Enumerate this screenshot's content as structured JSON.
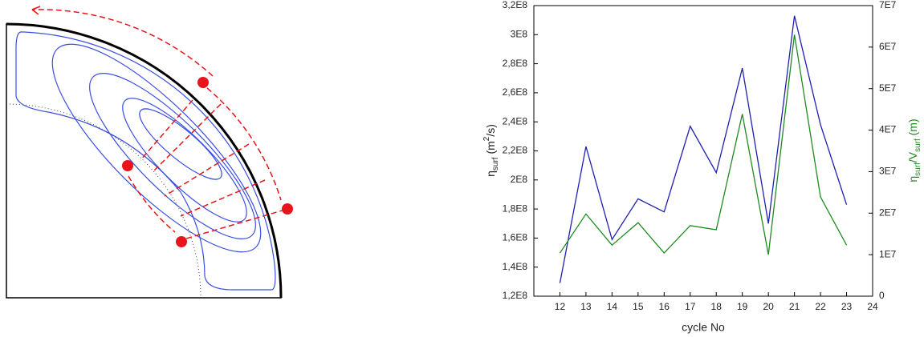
{
  "chart_data": {
    "type": "line",
    "x_label": "cycle No",
    "y_label_parts": [
      "η",
      "surf",
      " (m",
      "2",
      "/s)"
    ],
    "y2_label_parts": [
      "η",
      "surf",
      "/V",
      "surf",
      " (m)"
    ],
    "x": [
      12,
      13,
      14,
      15,
      16,
      17,
      18,
      19,
      20,
      21,
      22,
      23
    ],
    "xlim": [
      11,
      24
    ],
    "xticks": [
      12,
      13,
      14,
      15,
      16,
      17,
      18,
      19,
      20,
      21,
      22,
      23,
      24
    ],
    "ylim": [
      120000000,
      320000000
    ],
    "yticks": [
      {
        "value": 120000000,
        "label": "1,2E8"
      },
      {
        "value": 140000000,
        "label": "1,4E8"
      },
      {
        "value": 160000000,
        "label": "1,6E8"
      },
      {
        "value": 180000000,
        "label": "1,8E8"
      },
      {
        "value": 200000000,
        "label": "2E8"
      },
      {
        "value": 220000000,
        "label": "2,2E8"
      },
      {
        "value": 240000000,
        "label": "2,4E8"
      },
      {
        "value": 260000000,
        "label": "2,6E8"
      },
      {
        "value": 280000000,
        "label": "2,8E8"
      },
      {
        "value": 300000000,
        "label": "3E8"
      },
      {
        "value": 320000000,
        "label": "3,2E8"
      }
    ],
    "y2lim": [
      0,
      70000000
    ],
    "y2ticks": [
      0,
      {
        "value": 10000000,
        "label": "1E7"
      },
      {
        "value": 20000000,
        "label": "2E7"
      },
      {
        "value": 30000000,
        "label": "3E7"
      },
      {
        "value": 40000000,
        "label": "4E7"
      },
      {
        "value": 50000000,
        "label": "5E7"
      },
      {
        "value": 60000000,
        "label": "6E7"
      },
      {
        "value": 70000000,
        "label": "7E7"
      }
    ],
    "series": [
      {
        "color": "#1f1fb4",
        "values": [
          129000000,
          223000000,
          159000000,
          187000000,
          178000000,
          237000000,
          205000000,
          277000000,
          170000000,
          313000000,
          238000000,
          183000000
        ]
      },
      {
        "color": "#1f8a1f",
        "axis": "y2",
        "values": [
          10400000,
          19800000,
          12300000,
          17700000,
          10400000,
          17000000,
          16000000,
          43900000,
          10000000,
          63000000,
          23900000,
          12300000
        ]
      }
    ]
  }
}
